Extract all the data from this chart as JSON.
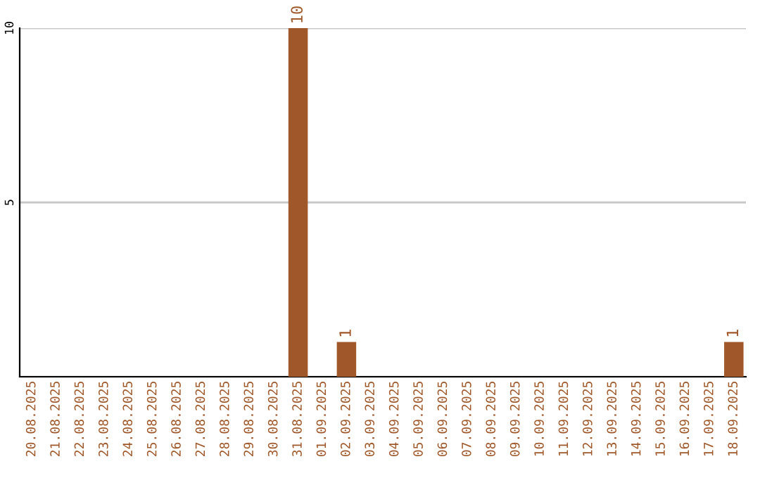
{
  "chart_data": {
    "type": "bar",
    "categories": [
      "20.08.2025",
      "21.08.2025",
      "22.08.2025",
      "23.08.2025",
      "24.08.2025",
      "25.08.2025",
      "26.08.2025",
      "27.08.2025",
      "28.08.2025",
      "29.08.2025",
      "30.08.2025",
      "31.08.2025",
      "01.09.2025",
      "02.09.2025",
      "03.09.2025",
      "04.09.2025",
      "05.09.2025",
      "06.09.2025",
      "07.09.2025",
      "08.09.2025",
      "09.09.2025",
      "10.09.2025",
      "11.09.2025",
      "12.09.2025",
      "13.09.2025",
      "14.09.2025",
      "15.09.2025",
      "16.09.2025",
      "17.09.2025",
      "18.09.2025"
    ],
    "values": [
      0,
      0,
      0,
      0,
      0,
      0,
      0,
      0,
      0,
      0,
      0,
      10,
      0,
      1,
      0,
      0,
      0,
      0,
      0,
      0,
      0,
      0,
      0,
      0,
      0,
      0,
      0,
      0,
      0,
      1
    ],
    "value_labels": [
      null,
      null,
      null,
      null,
      null,
      null,
      null,
      null,
      null,
      null,
      null,
      "10",
      null,
      "1",
      null,
      null,
      null,
      null,
      null,
      null,
      null,
      null,
      null,
      null,
      null,
      null,
      null,
      null,
      null,
      "1"
    ],
    "color": "#a0582a",
    "ylim": [
      0,
      10
    ],
    "yticks": [
      {
        "value": 0,
        "label": null
      },
      5,
      10
    ],
    "grid": "y"
  }
}
